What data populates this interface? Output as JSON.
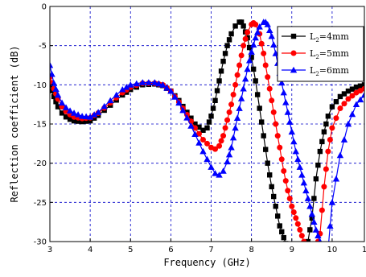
{
  "chart_data": {
    "type": "line",
    "title": "",
    "xlabel": "Frequency (GHz)",
    "ylabel": "Reflection coefficient (dB)",
    "xlim": [
      3,
      10.8
    ],
    "ylim": [
      -30,
      0
    ],
    "x_ticks": [
      "3",
      "4",
      "5",
      "6",
      "7",
      "8",
      "9",
      "10",
      "1"
    ],
    "y_ticks": [
      "0",
      "-5",
      "-10",
      "-15",
      "-20",
      "-25",
      "-30"
    ],
    "grid": true,
    "grid_style": "dashed",
    "legend_position": "top-right",
    "series": [
      {
        "name": "L2=4mm",
        "legend_main": "L",
        "legend_sub": "2",
        "legend_rest": "=4mm",
        "color": "#000000",
        "marker": "square",
        "x": [
          3.0,
          3.1,
          3.2,
          3.3,
          3.4,
          3.5,
          3.6,
          3.8,
          4.0,
          4.2,
          4.5,
          4.8,
          5.0,
          5.3,
          5.6,
          5.8,
          6.0,
          6.2,
          6.4,
          6.6,
          6.8,
          6.9,
          7.0,
          7.1,
          7.2,
          7.3,
          7.4,
          7.5,
          7.6,
          7.7,
          7.75,
          7.8,
          7.9,
          8.0,
          8.1,
          8.2,
          8.3,
          8.4,
          8.5,
          8.6,
          8.7,
          8.8,
          8.9,
          9.0,
          9.1,
          9.2,
          9.3,
          9.4,
          9.5,
          9.6,
          9.7,
          9.8,
          9.9,
          10.0,
          10.2,
          10.4,
          10.6,
          10.8
        ],
        "y": [
          -10.0,
          -11.5,
          -12.8,
          -13.6,
          -14.1,
          -14.4,
          -14.6,
          -14.7,
          -14.6,
          -13.9,
          -12.6,
          -11.3,
          -10.6,
          -10.0,
          -9.9,
          -10.1,
          -10.8,
          -12.0,
          -13.5,
          -15.0,
          -15.8,
          -15.5,
          -14.0,
          -12.0,
          -9.5,
          -7.0,
          -5.0,
          -3.5,
          -2.5,
          -2.0,
          -2.0,
          -2.5,
          -4.0,
          -6.5,
          -9.5,
          -13.0,
          -16.5,
          -20.0,
          -23.0,
          -25.5,
          -28.0,
          -29.5,
          -31.0,
          -31.0,
          -31.0,
          -31.0,
          -31.0,
          -30.0,
          -27.0,
          -22.0,
          -18.5,
          -16.0,
          -14.0,
          -12.8,
          -11.5,
          -10.8,
          -10.3,
          -10.0
        ]
      },
      {
        "name": "L2=5mm",
        "legend_main": "L",
        "legend_sub": "2",
        "legend_rest": "=5mm",
        "color": "#ff0000",
        "marker": "circle",
        "x": [
          3.0,
          3.1,
          3.2,
          3.3,
          3.4,
          3.5,
          3.6,
          3.8,
          4.0,
          4.2,
          4.5,
          4.8,
          5.0,
          5.3,
          5.6,
          5.8,
          6.0,
          6.2,
          6.4,
          6.6,
          6.8,
          7.0,
          7.1,
          7.2,
          7.3,
          7.4,
          7.5,
          7.6,
          7.7,
          7.8,
          7.9,
          8.0,
          8.05,
          8.1,
          8.2,
          8.3,
          8.4,
          8.5,
          8.6,
          8.7,
          8.8,
          8.9,
          9.0,
          9.1,
          9.2,
          9.3,
          9.4,
          9.5,
          9.6,
          9.7,
          9.8,
          9.9,
          10.0,
          10.2,
          10.4,
          10.6,
          10.8
        ],
        "y": [
          -9.0,
          -10.5,
          -11.8,
          -12.8,
          -13.4,
          -13.8,
          -14.1,
          -14.3,
          -14.2,
          -13.6,
          -12.3,
          -11.0,
          -10.3,
          -9.8,
          -9.8,
          -10.0,
          -10.8,
          -12.2,
          -13.8,
          -15.5,
          -17.0,
          -18.0,
          -18.2,
          -17.8,
          -16.5,
          -14.5,
          -12.5,
          -10.0,
          -7.5,
          -5.0,
          -3.3,
          -2.3,
          -2.1,
          -2.3,
          -3.5,
          -6.0,
          -9.0,
          -12.0,
          -15.0,
          -18.0,
          -21.0,
          -23.5,
          -25.5,
          -27.0,
          -28.5,
          -30.0,
          -31.0,
          -31.0,
          -31.0,
          -29.0,
          -23.0,
          -18.5,
          -15.5,
          -13.0,
          -11.8,
          -11.0,
          -10.5
        ]
      },
      {
        "name": "L2=6mm",
        "legend_main": "L",
        "legend_sub": "2",
        "legend_rest": "=6mm",
        "color": "#0000ff",
        "marker": "triangle",
        "x": [
          3.0,
          3.1,
          3.2,
          3.3,
          3.4,
          3.5,
          3.6,
          3.8,
          4.0,
          4.2,
          4.5,
          4.8,
          5.0,
          5.3,
          5.6,
          5.8,
          6.0,
          6.2,
          6.4,
          6.6,
          6.8,
          7.0,
          7.1,
          7.2,
          7.3,
          7.4,
          7.5,
          7.6,
          7.7,
          7.8,
          7.9,
          8.0,
          8.1,
          8.2,
          8.3,
          8.35,
          8.4,
          8.5,
          8.6,
          8.7,
          8.8,
          8.9,
          9.0,
          9.1,
          9.2,
          9.3,
          9.4,
          9.5,
          9.6,
          9.7,
          9.8,
          9.9,
          10.0,
          10.2,
          10.4,
          10.6,
          10.8
        ],
        "y": [
          -7.5,
          -9.8,
          -11.3,
          -12.3,
          -12.9,
          -13.3,
          -13.6,
          -14.0,
          -14.1,
          -13.5,
          -12.0,
          -10.6,
          -10.0,
          -9.7,
          -9.7,
          -10.0,
          -10.8,
          -12.3,
          -14.2,
          -16.3,
          -18.5,
          -20.5,
          -21.3,
          -21.5,
          -21.0,
          -19.8,
          -18.0,
          -15.5,
          -13.0,
          -10.5,
          -8.0,
          -5.8,
          -4.0,
          -2.6,
          -2.0,
          -2.0,
          -2.3,
          -3.8,
          -6.0,
          -8.5,
          -11.0,
          -13.5,
          -16.0,
          -18.5,
          -20.5,
          -22.5,
          -24.5,
          -26.5,
          -28.5,
          -30.0,
          -31.0,
          -31.0,
          -25.0,
          -19.0,
          -15.0,
          -12.5,
          -11.3
        ]
      }
    ]
  }
}
